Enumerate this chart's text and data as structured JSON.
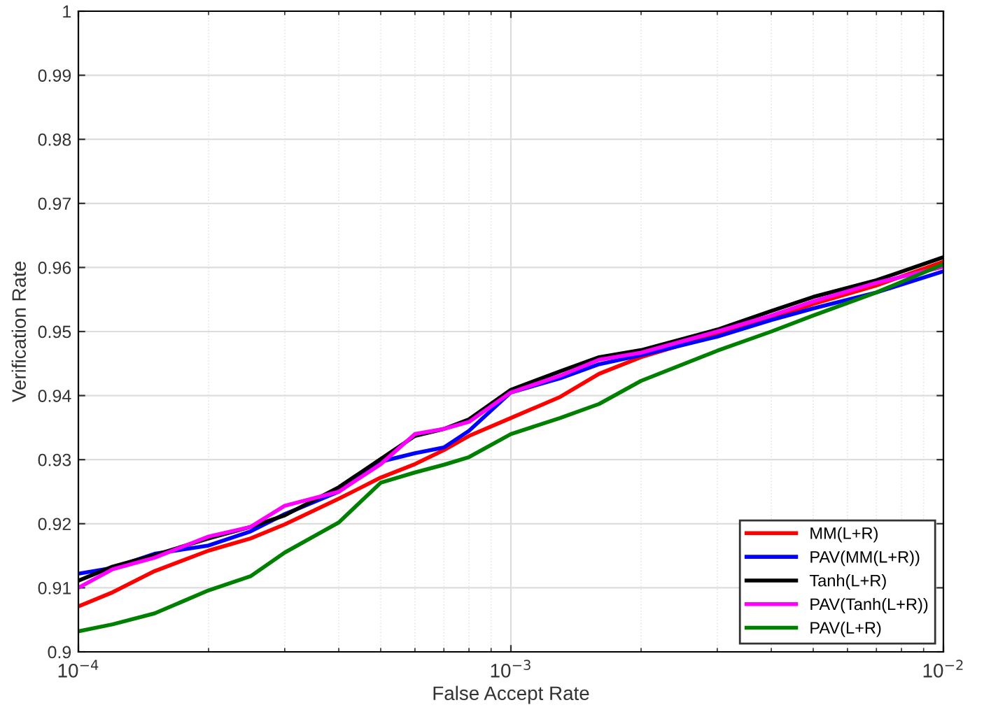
{
  "chart_data": {
    "type": "line",
    "xlabel": "False Accept Rate",
    "ylabel": "Verification Rate",
    "x": [
      0.0001,
      0.00012,
      0.00015,
      0.0002,
      0.00025,
      0.0003,
      0.0004,
      0.0005,
      0.0006,
      0.0007,
      0.0008,
      0.001,
      0.0013,
      0.0016,
      0.002,
      0.003,
      0.004,
      0.005,
      0.007,
      0.01
    ],
    "series": [
      {
        "name": "MM(L+R)",
        "color": "#ff0000",
        "values": [
          0.9071,
          0.9093,
          0.9126,
          0.9158,
          0.9177,
          0.9199,
          0.9239,
          0.9272,
          0.9293,
          0.9315,
          0.9337,
          0.9365,
          0.9398,
          0.9434,
          0.946,
          0.9496,
          0.9521,
          0.9543,
          0.9572,
          0.9609
        ]
      },
      {
        "name": "PAV(MM(L+R))",
        "color": "#0000ff",
        "values": [
          0.9122,
          0.9131,
          0.9153,
          0.9166,
          0.9188,
          0.9215,
          0.925,
          0.9297,
          0.931,
          0.9319,
          0.9345,
          0.9405,
          0.9427,
          0.9449,
          0.9463,
          0.9492,
          0.9518,
          0.9536,
          0.9561,
          0.9594
        ]
      },
      {
        "name": "Tanh(L+R)",
        "color": "#000000",
        "values": [
          0.9111,
          0.9133,
          0.9151,
          0.9177,
          0.9195,
          0.9213,
          0.9257,
          0.9301,
          0.9337,
          0.9348,
          0.9363,
          0.9409,
          0.9438,
          0.946,
          0.9471,
          0.9503,
          0.9532,
          0.9554,
          0.958,
          0.9616
        ]
      },
      {
        "name": "PAV(Tanh(L+R))",
        "color": "#ff00ff",
        "values": [
          0.91,
          0.9129,
          0.9147,
          0.918,
          0.9195,
          0.9228,
          0.925,
          0.9293,
          0.934,
          0.9348,
          0.9359,
          0.9405,
          0.9431,
          0.9456,
          0.9467,
          0.95,
          0.9525,
          0.9547,
          0.9576,
          0.9601
        ]
      },
      {
        "name": "PAV(L+R)",
        "color": "#008000",
        "values": [
          0.9032,
          0.9043,
          0.906,
          0.9096,
          0.9118,
          0.9155,
          0.9202,
          0.9264,
          0.928,
          0.9292,
          0.9304,
          0.934,
          0.9365,
          0.9387,
          0.9423,
          0.947,
          0.95,
          0.9525,
          0.9561,
          0.9605
        ]
      }
    ],
    "log": "x",
    "xlim": [
      0.0001,
      0.01
    ],
    "xticks": [
      {
        "value": 0.0001,
        "label": "10$^{−4}$"
      },
      {
        "value": 0.001,
        "label": "10$^{−3}$"
      },
      {
        "value": 0.01,
        "label": "10$^{−2}$"
      }
    ],
    "ylim": [
      0.9,
      1
    ],
    "yticks": [
      0.9,
      0.91,
      0.92,
      0.93,
      0.94,
      0.95,
      0.96,
      0.97,
      0.98,
      0.99,
      1
    ],
    "grid": true,
    "legend": "bottom right",
    "marker": "none",
    "line_style": "solid"
  }
}
